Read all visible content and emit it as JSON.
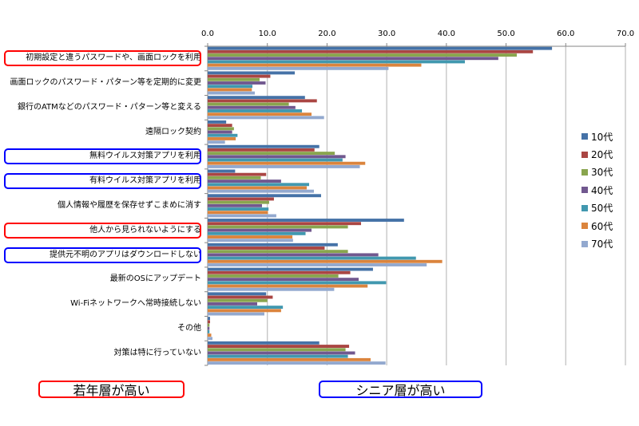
{
  "chart_data": {
    "type": "bar",
    "orientation": "horizontal",
    "title": "",
    "xlabel": "",
    "ylabel": "",
    "xlim": [
      0,
      70
    ],
    "x_ticks": [
      "0.0",
      "10.0",
      "20.0",
      "30.0",
      "40.0",
      "50.0",
      "60.0",
      "70.0"
    ],
    "grid": true,
    "legend_position": "right",
    "categories": [
      "初期設定と違うパスワードや、画面ロックを利用",
      "画面ロックのパスワード・パターン等を定期的に変更",
      "銀行のATMなどのパスワード・パターン等と変える",
      "遠隔ロック契約",
      "無料ウイルス対策アプリを利用",
      "有料ウイルス対策アプリを利用",
      "個人情報や履歴を保存せずこまめに消す",
      "他人から見られないようにする",
      "提供元不明のアプリはダウンロードしない",
      "最新のOSにアップデート",
      "Wi-Fiネットワークへ常時接続しない",
      "その他",
      "対策は特に行っていない"
    ],
    "series": [
      {
        "name": "10代",
        "color": "#4572A7",
        "values": [
          57.7,
          14.6,
          16.3,
          3.1,
          18.7,
          4.6,
          19.0,
          32.9,
          21.8,
          27.7,
          9.8,
          0.4,
          18.7
        ]
      },
      {
        "name": "20代",
        "color": "#AA4643",
        "values": [
          54.5,
          10.5,
          18.3,
          4.1,
          17.9,
          9.8,
          11.1,
          25.7,
          19.6,
          23.9,
          10.9,
          0.4,
          23.7
        ]
      },
      {
        "name": "30代",
        "color": "#89A54E",
        "values": [
          51.8,
          8.7,
          13.6,
          4.4,
          21.3,
          8.9,
          10.3,
          23.5,
          23.5,
          21.9,
          10.0,
          0.3,
          23.1
        ]
      },
      {
        "name": "40代",
        "color": "#71588F",
        "values": [
          48.7,
          9.7,
          14.7,
          4.1,
          23.1,
          12.3,
          9.1,
          17.4,
          28.6,
          25.3,
          8.3,
          0.3,
          24.7
        ]
      },
      {
        "name": "50代",
        "color": "#4198AF",
        "values": [
          43.1,
          7.5,
          15.8,
          5.0,
          22.6,
          17.0,
          10.2,
          16.4,
          34.9,
          29.9,
          12.6,
          0.3,
          23.5
        ]
      },
      {
        "name": "60代",
        "color": "#DB843D",
        "values": [
          35.8,
          7.4,
          17.4,
          4.7,
          26.4,
          16.6,
          10.1,
          14.2,
          39.3,
          26.8,
          12.3,
          0.6,
          27.3
        ]
      },
      {
        "name": "70代",
        "color": "#93A9CF",
        "values": [
          30.3,
          7.9,
          19.5,
          2.9,
          25.5,
          17.8,
          11.5,
          14.3,
          36.7,
          21.2,
          9.5,
          0.8,
          29.8
        ]
      }
    ],
    "highlights": [
      {
        "category_index": 0,
        "group": "young"
      },
      {
        "category_index": 4,
        "group": "senior"
      },
      {
        "category_index": 5,
        "group": "senior"
      },
      {
        "category_index": 7,
        "group": "young"
      },
      {
        "category_index": 8,
        "group": "senior"
      }
    ],
    "annotations": [
      {
        "text": "若年層が高い",
        "color": "#FF0000"
      },
      {
        "text": "シニア層が高い",
        "color": "#0000FF"
      }
    ]
  },
  "notes": {
    "young_label": "若年層が高い",
    "young_color": "#FF0000",
    "senior_label": "シニア層が高い",
    "senior_color": "#0000FF"
  }
}
